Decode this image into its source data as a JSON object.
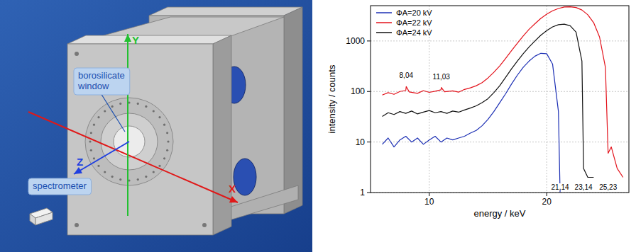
{
  "diagram": {
    "labels": [
      "borosilicate window",
      "spectrometer"
    ],
    "axes": [
      "X",
      "Y",
      "Z"
    ]
  },
  "chart_data": {
    "type": "line",
    "x_label": "energy / keV",
    "y_label": "intensity / counts",
    "log": "y",
    "grid": true,
    "legend": "top-left",
    "xlim": [
      5,
      27
    ],
    "xticks": [
      10,
      20
    ],
    "ylim": [
      1,
      5000
    ],
    "yticks": [
      1,
      10,
      100,
      1000
    ],
    "series": [
      {
        "name": "ΦA=20 kV",
        "color": "#1c2fb4",
        "x": [
          6,
          6.5,
          7,
          7.5,
          8,
          8.5,
          9,
          9.5,
          10,
          10.5,
          11,
          11.5,
          12,
          12.5,
          13,
          13.5,
          14,
          14.5,
          15,
          15.5,
          16,
          16.5,
          17,
          17.5,
          18,
          18.5,
          19,
          19.5,
          20,
          20.5,
          21,
          21.14
        ],
        "values": [
          9,
          12,
          8,
          11,
          13,
          10,
          12,
          9,
          11,
          13,
          10,
          12,
          11,
          12,
          13,
          15,
          17,
          21,
          28,
          40,
          60,
          90,
          140,
          210,
          300,
          400,
          500,
          570,
          560,
          350,
          40,
          1
        ]
      },
      {
        "name": "ΦA=22 kV",
        "color": "#e3121b",
        "x": [
          6,
          6.5,
          7,
          7.5,
          8,
          8.04,
          8.3,
          9,
          9.5,
          10,
          10.5,
          11,
          11.03,
          11.3,
          12,
          12.5,
          13,
          13.5,
          14,
          14.5,
          15,
          15.5,
          16,
          16.5,
          17,
          17.5,
          18,
          18.5,
          19,
          19.5,
          20,
          20.5,
          21,
          21.5,
          22,
          22.5,
          23,
          23.5,
          24,
          24.5,
          25,
          25.23,
          25.5,
          26,
          26.5
        ],
        "values": [
          85,
          95,
          88,
          100,
          105,
          125,
          98,
          92,
          104,
          96,
          101,
          108,
          120,
          99,
          103,
          97,
          110,
          118,
          130,
          150,
          185,
          240,
          320,
          450,
          640,
          900,
          1250,
          1700,
          2200,
          2800,
          3400,
          3950,
          4400,
          4700,
          4750,
          4600,
          4100,
          3300,
          2300,
          1200,
          300,
          6,
          8,
          3,
          2
        ]
      },
      {
        "name": "ΦA=24 kV",
        "color": "#111111",
        "x": [
          6,
          6.5,
          7,
          7.5,
          8,
          8.5,
          9,
          9.5,
          10,
          10.5,
          11,
          11.5,
          12,
          12.5,
          13,
          13.5,
          14,
          14.5,
          15,
          15.5,
          16,
          16.5,
          17,
          17.5,
          18,
          18.5,
          19,
          19.5,
          20,
          20.5,
          21,
          21.5,
          22,
          22.5,
          23,
          23.14,
          23.5,
          24
        ],
        "values": [
          32,
          38,
          35,
          40,
          37,
          41,
          36,
          39,
          42,
          38,
          40,
          37,
          41,
          39,
          43,
          47,
          52,
          60,
          72,
          95,
          130,
          190,
          280,
          400,
          560,
          760,
          1000,
          1300,
          1600,
          1900,
          2100,
          2150,
          2000,
          1500,
          400,
          3,
          2,
          2
        ]
      }
    ],
    "peak_labels": [
      {
        "text": "8,04",
        "x": 8.04
      },
      {
        "text": "11,03",
        "x": 11.03
      }
    ],
    "cutoff_labels": [
      {
        "text": "21,14",
        "x": 21.14
      },
      {
        "text": "23,14",
        "x": 23.14
      },
      {
        "text": "25,23",
        "x": 25.23
      }
    ]
  }
}
